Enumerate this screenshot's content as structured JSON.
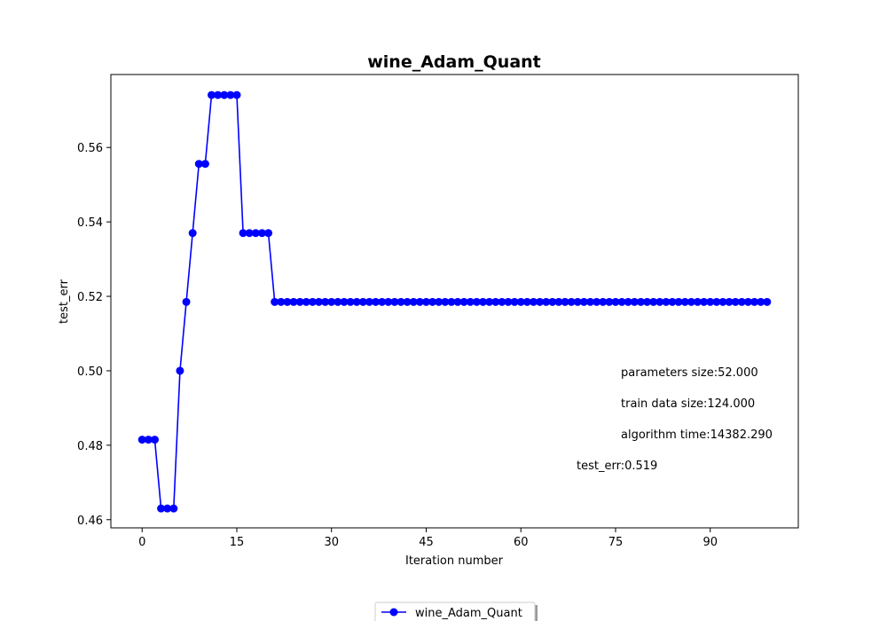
{
  "chart_data": {
    "type": "line",
    "title": "wine_Adam_Quant",
    "xlabel": "Iteration number",
    "ylabel": "test_err",
    "xlim": [
      -4.95,
      103.95
    ],
    "ylim": [
      0.4578,
      0.5796
    ],
    "xticks": [
      0,
      15,
      30,
      45,
      60,
      75,
      90
    ],
    "yticks": [
      0.46,
      0.48,
      0.5,
      0.52,
      0.54,
      0.56
    ],
    "ytick_labels": [
      "0.46",
      "0.48",
      "0.50",
      "0.52",
      "0.54",
      "0.56"
    ],
    "grid": false,
    "legend_position": "bottom-center",
    "series": [
      {
        "name": "wine_Adam_Quant",
        "color": "#0000ff",
        "marker": "circle",
        "x": [
          0,
          1,
          2,
          3,
          4,
          5,
          6,
          7,
          8,
          9,
          10,
          11,
          12,
          13,
          14,
          15,
          16,
          17,
          18,
          19,
          20,
          21,
          22,
          23,
          24,
          25,
          26,
          27,
          28,
          29,
          30,
          31,
          32,
          33,
          34,
          35,
          36,
          37,
          38,
          39,
          40,
          41,
          42,
          43,
          44,
          45,
          46,
          47,
          48,
          49,
          50,
          51,
          52,
          53,
          54,
          55,
          56,
          57,
          58,
          59,
          60,
          61,
          62,
          63,
          64,
          65,
          66,
          67,
          68,
          69,
          70,
          71,
          72,
          73,
          74,
          75,
          76,
          77,
          78,
          79,
          80,
          81,
          82,
          83,
          84,
          85,
          86,
          87,
          88,
          89,
          90,
          91,
          92,
          93,
          94,
          95,
          96,
          97,
          98,
          99
        ],
        "y": [
          0.4815,
          0.4815,
          0.4815,
          0.463,
          0.463,
          0.463,
          0.5,
          0.5185,
          0.537,
          0.5556,
          0.5556,
          0.5741,
          0.5741,
          0.5741,
          0.5741,
          0.5741,
          0.537,
          0.537,
          0.537,
          0.537,
          0.537,
          0.5185,
          0.5185,
          0.5185,
          0.5185,
          0.5185,
          0.5185,
          0.5185,
          0.5185,
          0.5185,
          0.5185,
          0.5185,
          0.5185,
          0.5185,
          0.5185,
          0.5185,
          0.5185,
          0.5185,
          0.5185,
          0.5185,
          0.5185,
          0.5185,
          0.5185,
          0.5185,
          0.5185,
          0.5185,
          0.5185,
          0.5185,
          0.5185,
          0.5185,
          0.5185,
          0.5185,
          0.5185,
          0.5185,
          0.5185,
          0.5185,
          0.5185,
          0.5185,
          0.5185,
          0.5185,
          0.5185,
          0.5185,
          0.5185,
          0.5185,
          0.5185,
          0.5185,
          0.5185,
          0.5185,
          0.5185,
          0.5185,
          0.5185,
          0.5185,
          0.5185,
          0.5185,
          0.5185,
          0.5185,
          0.5185,
          0.5185,
          0.5185,
          0.5185,
          0.5185,
          0.5185,
          0.5185,
          0.5185,
          0.5185,
          0.5185,
          0.5185,
          0.5185,
          0.5185,
          0.5185,
          0.5185,
          0.5185,
          0.5185,
          0.5185,
          0.5185,
          0.5185,
          0.5185,
          0.5185,
          0.5185,
          0.5185
        ]
      }
    ],
    "annotations": [
      "parameters size:52.000",
      "train data size:124.000",
      "algorithm time:14382.290",
      "test_err:0.519"
    ]
  }
}
